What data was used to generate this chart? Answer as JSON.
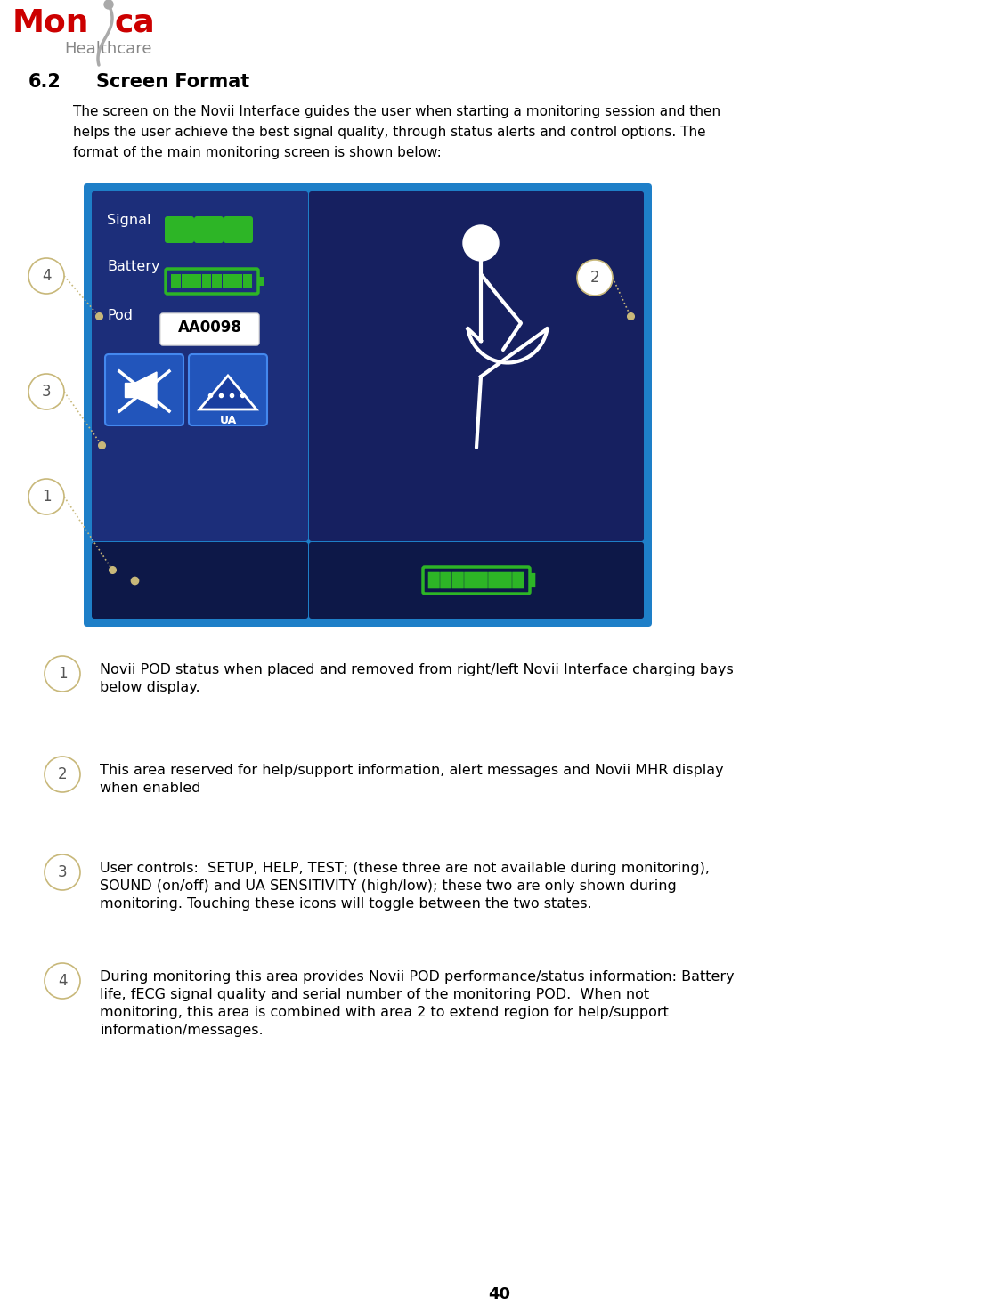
{
  "page_number": "40",
  "section_number": "6.2",
  "section_title": "Screen Format",
  "intro_lines": [
    "The screen on the Novii Interface guides the user when starting a monitoring session and then",
    "helps the user achieve the best signal quality, through status alerts and control options. The",
    "format of the main monitoring screen is shown below:"
  ],
  "legend_items": [
    {
      "num": "1",
      "text_lines": [
        "Novii POD status when placed and removed from right/left Novii Interface charging bays",
        "below display."
      ]
    },
    {
      "num": "2",
      "text_lines": [
        "This area reserved for help/support information, alert messages and Novii MHR display",
        "when enabled"
      ]
    },
    {
      "num": "3",
      "text_lines": [
        "User controls:  SETUP, HELP, TEST; (these three are not available during monitoring),",
        "SOUND (on/off) and UA SENSITIVITY (high/low); these two are only shown during",
        "monitoring. Touching these icons will toggle between the two states."
      ]
    },
    {
      "num": "4",
      "text_lines": [
        "During monitoring this area provides Novii POD performance/status information: Battery",
        "life, fECG signal quality and serial number of the monitoring POD.  When not",
        "monitoring, this area is combined with area 2 to extend region for help/support",
        "information/messages."
      ]
    }
  ],
  "bg_color": "#ffffff",
  "screen_outer_color": "#1e7fc8",
  "panel_left_color": "#1c2e7a",
  "panel_right_color": "#162060",
  "panel_bottom_color": "#0d1848",
  "green_color": "#2db526",
  "green_dark": "#229c1c",
  "circle_border_color": "#c8b87a",
  "circle_text_color": "#555555",
  "btn_blue": "#2255bb",
  "btn_border": "#4488ee",
  "pod_value": "AA0098",
  "text_color": "#000000",
  "white": "#ffffff",
  "gray_logo": "#888888",
  "red_logo": "#cc0000"
}
